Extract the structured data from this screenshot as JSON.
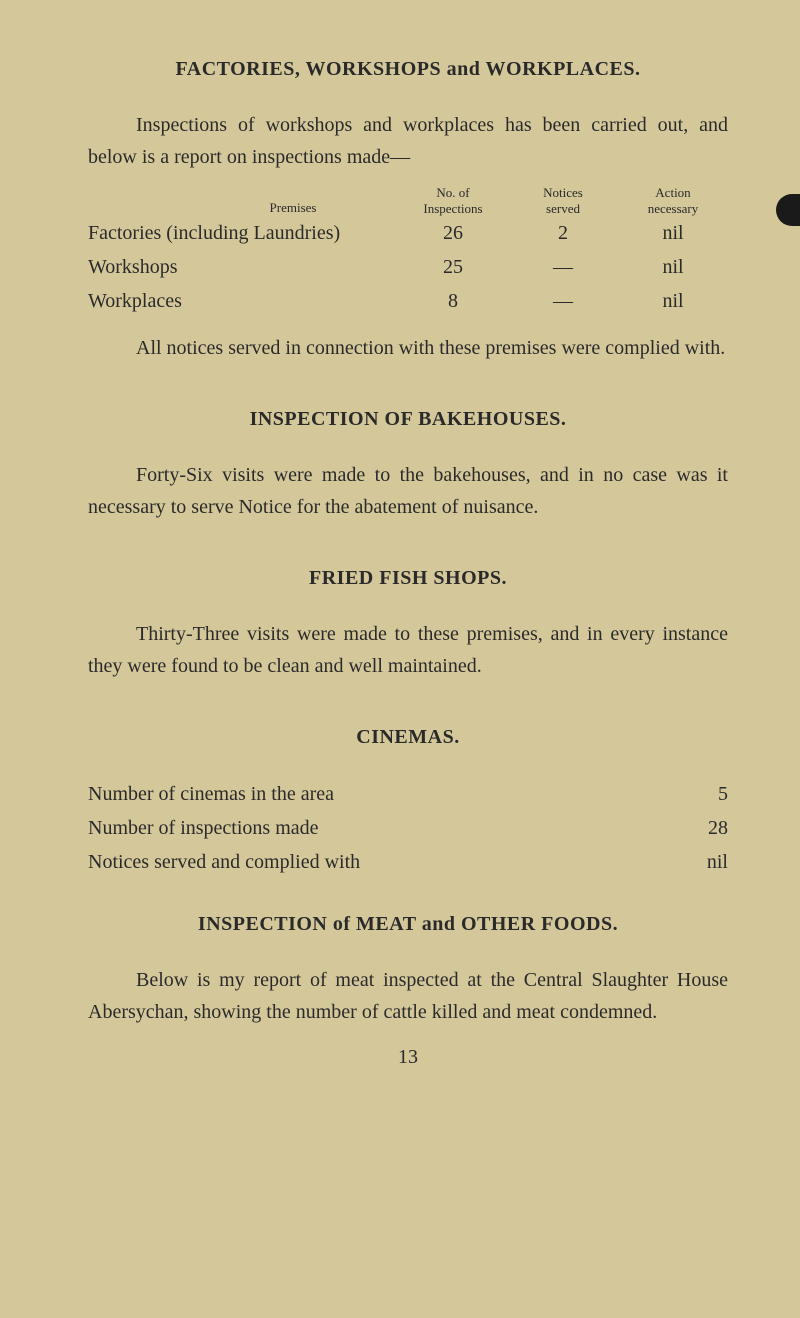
{
  "page": {
    "background_color": "#d4c89a",
    "text_color": "#2a2a2a",
    "number": "13"
  },
  "section1": {
    "title": "FACTORIES, WORKSHOPS and WORKPLACES.",
    "intro": "Inspections of workshops and workplaces has been carried out, and below is a report on inspections made—",
    "table": {
      "headers": {
        "premises": "Premises",
        "inspections": "No. of Inspections",
        "notices": "Notices served",
        "action": "Action necessary"
      },
      "rows": [
        {
          "label": "Factories (including Laundries)",
          "inspections": "26",
          "notices": "2",
          "action": "nil"
        },
        {
          "label": "Workshops",
          "inspections": "25",
          "notices": "—",
          "action": "nil"
        },
        {
          "label": "Workplaces",
          "inspections": "8",
          "notices": "—",
          "action": "nil"
        }
      ]
    },
    "outro": "All notices served in connection with these premises were complied with."
  },
  "section2": {
    "title": "INSPECTION OF BAKEHOUSES.",
    "body": "Forty-Six visits were made to the bakehouses, and in no case was it necessary to serve Notice for the abatement of nuisance."
  },
  "section3": {
    "title": "FRIED FISH SHOPS.",
    "body": "Thirty-Three visits were made to these premises, and in every instance they were found to be clean and well maintained."
  },
  "section4": {
    "title": "CINEMAS.",
    "rows": [
      {
        "label": "Number of cinemas in the area",
        "value": "5"
      },
      {
        "label": "Number of inspections made",
        "value": "28"
      },
      {
        "label": "Notices served and complied with",
        "value": "nil"
      }
    ]
  },
  "section5": {
    "title": "INSPECTION of MEAT and OTHER FOODS.",
    "body": "Below is my report of meat inspected at the Central Slaughter House Abersychan, showing the number of cattle killed and meat condemned."
  }
}
